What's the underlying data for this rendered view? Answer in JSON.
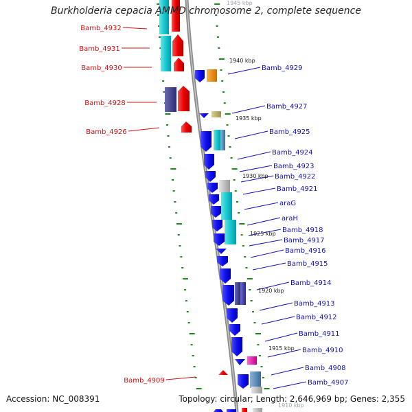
{
  "title": "Burkholderia cepacia AMMD chromosome 2, complete sequence",
  "footer": {
    "accession": "Accession: NC_008391",
    "summary": "Topology: circular; Length: 2,646,969 bp; Genes: 2,355"
  },
  "colors": {
    "left_label": "#d01010",
    "right_label": "#1010b0",
    "backbone": "#8a8a8a",
    "tick": "#1a8a1a"
  },
  "kbp_marks": [
    "1945 kbp",
    "1940 kbp",
    "1935 kbp",
    "1930 kbp",
    "1925 kbp",
    "1920 kbp",
    "1915 kbp",
    "1910 kbp"
  ],
  "left_genes": [
    "Bamb_4932",
    "Bamb_4931",
    "Bamb_4930",
    "Bamb_4928",
    "Bamb_4926",
    "Bamb_4909"
  ],
  "right_genes": [
    "Bamb_4929",
    "Bamb_4927",
    "Bamb_4925",
    "Bamb_4924",
    "Bamb_4923",
    "Bamb_4922",
    "Bamb_4921",
    "araG",
    "araH",
    "Bamb_4918",
    "Bamb_4917",
    "Bamb_4916",
    "Bamb_4915",
    "Bamb_4914",
    "Bamb_4913",
    "Bamb_4912",
    "Bamb_4911",
    "Bamb_4910",
    "Bamb_4908",
    "Bamb_4907"
  ]
}
